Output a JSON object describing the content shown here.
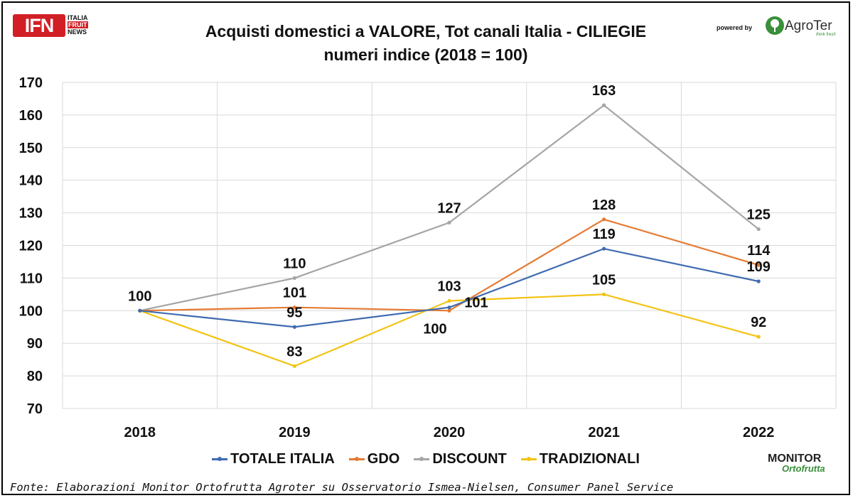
{
  "header": {
    "title_line1": "Acquisti domestici a VALORE, Tot canali Italia - CILIEGIE",
    "title_line2": "numeri indice (2018 = 100)",
    "logo_left_text": "IFN",
    "logo_left_side": [
      "ITALIA",
      "FRUIT",
      "NEWS"
    ],
    "powered_by": "powered by",
    "logo_right_text": "AgroTer",
    "logo_right_tagline": "think fresh"
  },
  "footer": {
    "source": "Fonte: Elaborazioni Monitor Ortofrutta Agroter su Osservatorio Ismea-Nielsen, Consumer Panel Service",
    "monitor_logo_top": "MONITOR",
    "monitor_logo_bottom": "Ortofrutta"
  },
  "colors": {
    "totale": "#3f6bb0",
    "gdo": "#e57a32",
    "discount": "#a5a5a5",
    "tradizionali": "#f2c314",
    "grid": "#d9d9d9"
  },
  "chart_data": {
    "type": "line",
    "title": "Acquisti domestici a VALORE, Tot canali Italia - CILIEGIE",
    "subtitle": "numeri indice (2018 = 100)",
    "categories": [
      "2018",
      "2019",
      "2020",
      "2021",
      "2022"
    ],
    "ylim": [
      70,
      170
    ],
    "yticks": [
      70,
      80,
      90,
      100,
      110,
      120,
      130,
      140,
      150,
      160,
      170
    ],
    "grid": true,
    "legend_position": "bottom",
    "series": [
      {
        "name": "TOTALE ITALIA",
        "values": [
          100,
          95,
          101,
          119,
          109
        ],
        "labels": [
          "",
          "95",
          "101",
          "119",
          "109"
        ],
        "color": "#3f6bb0"
      },
      {
        "name": "GDO",
        "values": [
          100,
          101,
          100,
          128,
          114
        ],
        "labels": [
          "",
          "101",
          "100",
          "128",
          "114"
        ],
        "color": "#e57a32"
      },
      {
        "name": "DISCOUNT",
        "values": [
          100,
          110,
          127,
          163,
          125
        ],
        "labels": [
          "",
          "110",
          "127",
          "163",
          "125"
        ],
        "color": "#a5a5a5"
      },
      {
        "name": "TRADIZIONALI",
        "values": [
          100,
          83,
          103,
          105,
          92
        ],
        "labels": [
          "100",
          "83",
          "103",
          "105",
          "92"
        ],
        "color": "#f2c314"
      }
    ]
  }
}
